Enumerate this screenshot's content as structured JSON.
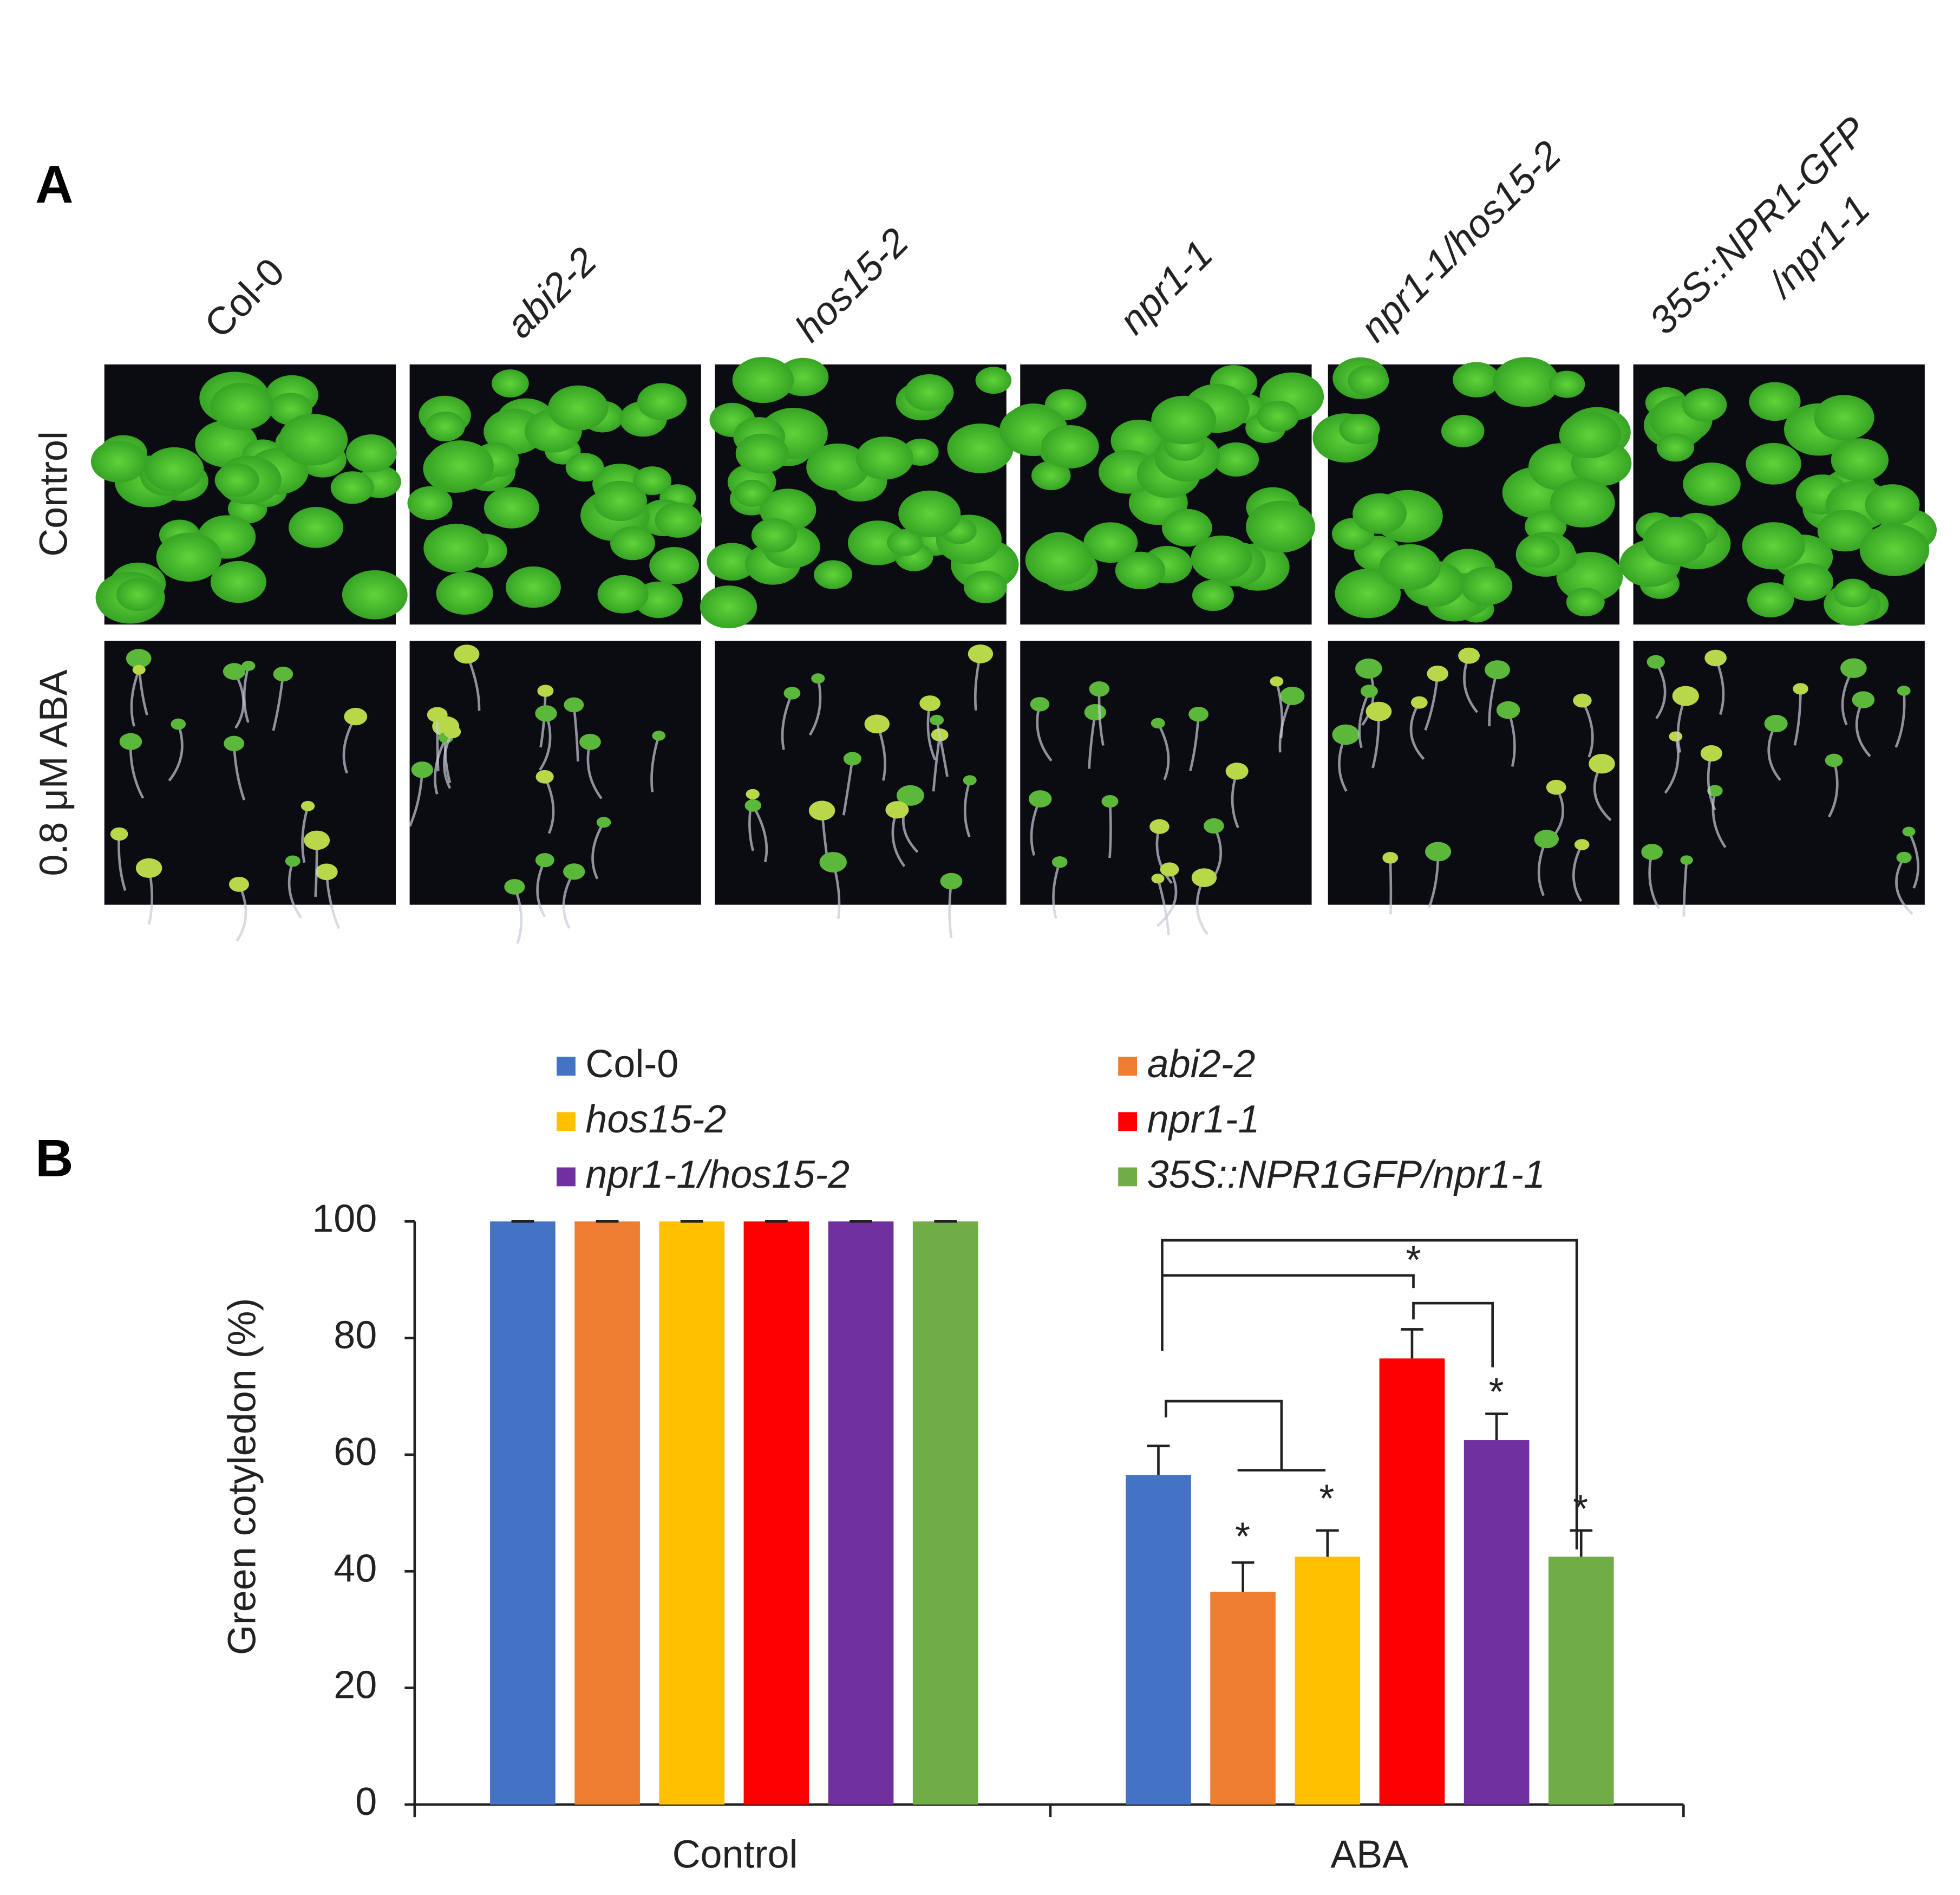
{
  "panel_a": {
    "label": "A",
    "columns": [
      [
        "Col-0"
      ],
      [
        "abi2-2"
      ],
      [
        "hos15-2"
      ],
      [
        "npr1-1"
      ],
      [
        "npr1-1/hos15-2"
      ],
      [
        "35S::NPR1-GFP",
        "/npr1-1"
      ]
    ],
    "rows": [
      "Control",
      "0.8 μM ABA"
    ]
  },
  "panel_b": {
    "label": "B"
  },
  "chart_data": {
    "type": "bar",
    "ylabel": "Green cotyledon (%)",
    "categories": [
      "Control",
      "ABA"
    ],
    "series": [
      {
        "name": "Col-0",
        "color": "#4472c4",
        "values": [
          100,
          56.5
        ],
        "errors": [
          0,
          5
        ]
      },
      {
        "name": "abi2-2",
        "color": "#ed7d31",
        "values": [
          100,
          36.5
        ],
        "errors": [
          0,
          5
        ]
      },
      {
        "name": "hos15-2",
        "color": "#ffc000",
        "values": [
          100,
          42.5
        ],
        "errors": [
          0,
          4.5
        ]
      },
      {
        "name": "npr1-1",
        "color": "#ff0000",
        "values": [
          100,
          76.5
        ],
        "errors": [
          0,
          5
        ]
      },
      {
        "name": "npr1-1/hos15-2",
        "color": "#7030a0",
        "values": [
          100,
          62.5
        ],
        "errors": [
          0,
          4.5
        ]
      },
      {
        "name": "35S::NPR1GFP/npr1-1",
        "color": "#70ad47",
        "values": [
          100,
          42.5
        ],
        "errors": [
          0,
          4.5
        ]
      }
    ],
    "annotations": [
      "*",
      "*",
      "*",
      "*",
      "*"
    ],
    "ylim": [
      0,
      100
    ],
    "yticks": [
      0,
      20,
      40,
      60,
      80,
      100
    ],
    "grid": false,
    "legend": "top"
  }
}
